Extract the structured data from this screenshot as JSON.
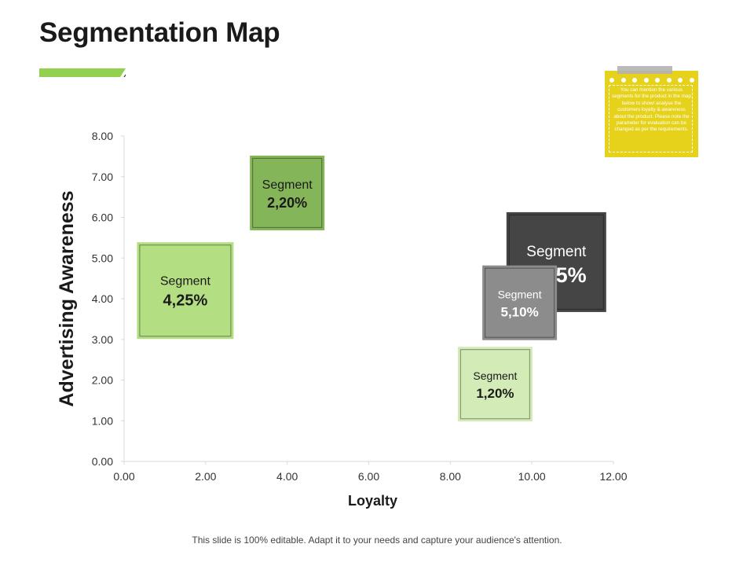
{
  "title": "Segmentation Map",
  "note": {
    "text": "You can mention the various segments for the product in the map below to show/ analyse the customers loyalty & awareness about the product. Please note the parameter for evaluation can be changed as per the requirements."
  },
  "footer": "This slide is 100% editable. Adapt it to your needs and capture your audience's attention.",
  "colors": {
    "accent": "#92d050",
    "note": "#e6d21a",
    "axis": "#d9d9d9"
  },
  "chart_data": {
    "type": "scatter",
    "xlabel": "Loyalty",
    "ylabel": "Advertising Awareness",
    "xlim": [
      0,
      12
    ],
    "ylim": [
      0,
      8
    ],
    "xticks": [
      "0.00",
      "2.00",
      "4.00",
      "6.00",
      "8.00",
      "10.00",
      "12.00"
    ],
    "yticks": [
      "0.00",
      "1.00",
      "2.00",
      "3.00",
      "4.00",
      "5.00",
      "6.00",
      "7.00",
      "8.00"
    ],
    "grid": false,
    "points": [
      {
        "label": "Segment",
        "value_label": "4,25%",
        "x": 1.5,
        "y": 4.2,
        "color": "#b4de82",
        "text_color": "#1a1a1a"
      },
      {
        "label": "Segment",
        "value_label": "2,20%",
        "x": 4.0,
        "y": 6.6,
        "color": "#84b558",
        "text_color": "#1a1a1a"
      },
      {
        "label": "Segment",
        "value_label": "3,25%",
        "x": 10.6,
        "y": 4.9,
        "color": "#454545",
        "text_color": "#ffffff"
      },
      {
        "label": "Segment",
        "value_label": "5,10%",
        "x": 9.7,
        "y": 3.9,
        "color": "#8c8c8c",
        "text_color": "#ffffff"
      },
      {
        "label": "Segment",
        "value_label": "1,20%",
        "x": 9.1,
        "y": 1.9,
        "color": "#d3ecb7",
        "text_color": "#1a1a1a"
      }
    ]
  }
}
